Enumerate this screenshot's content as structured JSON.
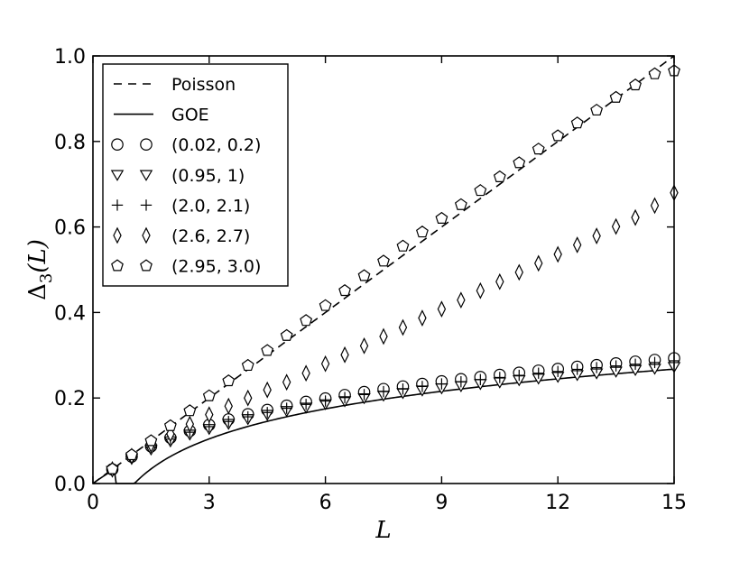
{
  "chart_data": {
    "type": "scatter",
    "xlabel": "L",
    "ylabel_main": "Δ",
    "ylabel_sub": "3",
    "ylabel_arg": "(L)",
    "xlim": [
      0,
      15
    ],
    "ylim": [
      0,
      1.0
    ],
    "x_ticks": [
      "0",
      "3",
      "6",
      "9",
      "12",
      "15"
    ],
    "x_tick_values": [
      0,
      3,
      6,
      9,
      12,
      15
    ],
    "y_ticks": [
      "0.0",
      "0.2",
      "0.4",
      "0.6",
      "0.8",
      "1.0"
    ],
    "y_tick_values": [
      0,
      0.2,
      0.4,
      0.6,
      0.8,
      1.0
    ],
    "grid": false,
    "legend_position": "upper-left",
    "x": [
      0.5,
      1.0,
      1.5,
      2.0,
      2.5,
      3.0,
      3.5,
      4.0,
      4.5,
      5.0,
      5.5,
      6.0,
      6.5,
      7.0,
      7.5,
      8.0,
      8.5,
      9.0,
      9.5,
      10.0,
      10.5,
      11.0,
      11.5,
      12.0,
      12.5,
      13.0,
      13.5,
      14.0,
      14.5,
      15.0
    ],
    "lines": [
      {
        "name": "Poisson",
        "style": "dashed",
        "function": "poisson"
      },
      {
        "name": "GOE",
        "style": "solid",
        "function": "goe"
      }
    ],
    "series": [
      {
        "name": "(0.02, 0.2)",
        "marker": "circle",
        "values": [
          0.033,
          0.063,
          0.087,
          0.107,
          0.123,
          0.137,
          0.15,
          0.162,
          0.172,
          0.182,
          0.191,
          0.199,
          0.207,
          0.214,
          0.221,
          0.227,
          0.233,
          0.239,
          0.244,
          0.249,
          0.254,
          0.259,
          0.264,
          0.268,
          0.273,
          0.277,
          0.281,
          0.285,
          0.289,
          0.293
        ]
      },
      {
        "name": "(0.95, 1)",
        "marker": "triangle-down",
        "values": [
          0.03,
          0.058,
          0.08,
          0.099,
          0.115,
          0.128,
          0.14,
          0.151,
          0.161,
          0.17,
          0.178,
          0.186,
          0.193,
          0.2,
          0.206,
          0.212,
          0.218,
          0.223,
          0.228,
          0.233,
          0.237,
          0.242,
          0.246,
          0.25,
          0.254,
          0.258,
          0.262,
          0.266,
          0.269,
          0.273
        ]
      },
      {
        "name": "(2.0, 2.1)",
        "marker": "plus",
        "values": [
          0.032,
          0.061,
          0.085,
          0.104,
          0.12,
          0.133,
          0.145,
          0.156,
          0.166,
          0.176,
          0.185,
          0.193,
          0.201,
          0.208,
          0.215,
          0.221,
          0.227,
          0.233,
          0.238,
          0.243,
          0.248,
          0.253,
          0.258,
          0.262,
          0.267,
          0.271,
          0.275,
          0.279,
          0.283,
          0.287
        ]
      },
      {
        "name": "(2.6, 2.7)",
        "marker": "diamond",
        "values": [
          0.033,
          0.064,
          0.091,
          0.116,
          0.139,
          0.161,
          0.181,
          0.2,
          0.219,
          0.237,
          0.258,
          0.28,
          0.301,
          0.322,
          0.344,
          0.365,
          0.387,
          0.408,
          0.429,
          0.451,
          0.472,
          0.494,
          0.515,
          0.536,
          0.558,
          0.579,
          0.601,
          0.622,
          0.65,
          0.68
        ]
      },
      {
        "name": "(2.95, 3.0)",
        "marker": "pentagon",
        "values": [
          0.034,
          0.067,
          0.1,
          0.135,
          0.17,
          0.205,
          0.24,
          0.276,
          0.311,
          0.346,
          0.381,
          0.416,
          0.451,
          0.486,
          0.52,
          0.555,
          0.588,
          0.62,
          0.652,
          0.685,
          0.717,
          0.75,
          0.782,
          0.813,
          0.843,
          0.873,
          0.903,
          0.932,
          0.958,
          0.965
        ]
      }
    ]
  },
  "colors": {
    "line": "#000000",
    "marker_stroke": "#000000",
    "marker_fill": "#ffffff",
    "background": "#ffffff"
  }
}
